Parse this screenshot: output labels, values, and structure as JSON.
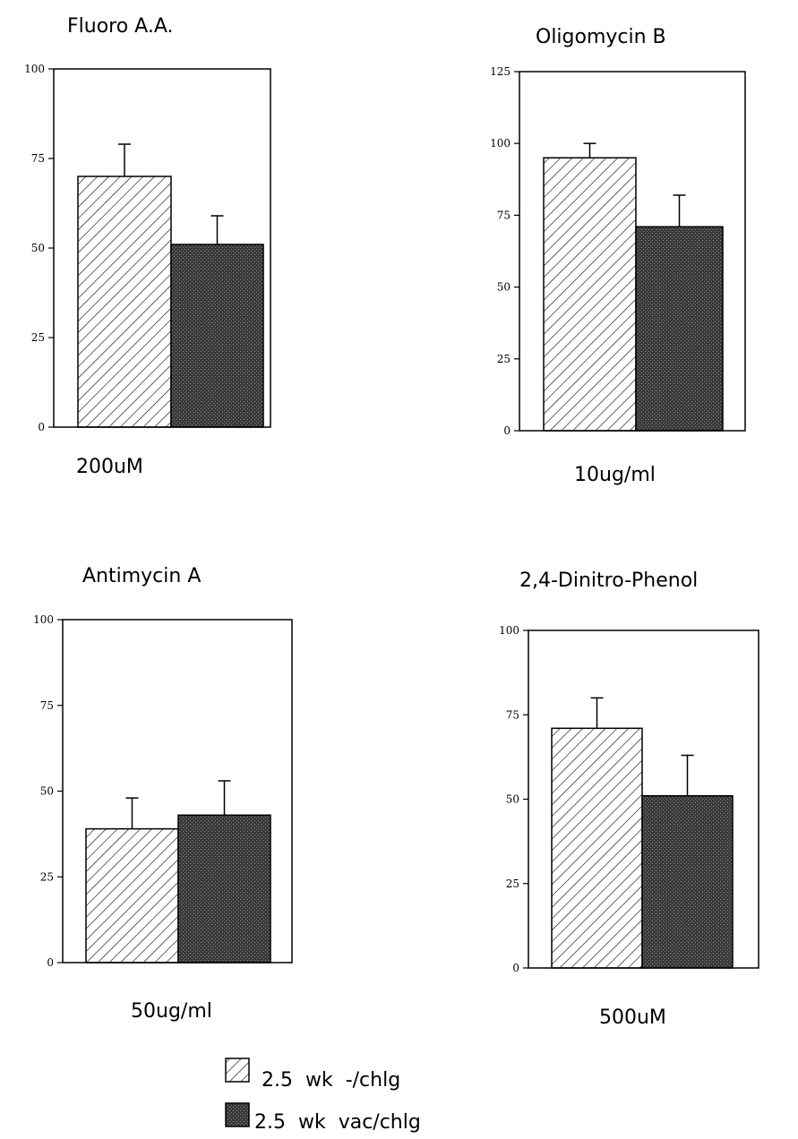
{
  "chart_data": [
    {
      "type": "bar",
      "title": "Fluoro  A.A.",
      "condition": "200uM",
      "ylim": [
        0,
        100
      ],
      "ticks": [
        0,
        25,
        50,
        75,
        100
      ],
      "grid": false,
      "series": [
        {
          "name": "2.5  wk  -/chlg",
          "values": [
            70
          ],
          "errors": [
            9
          ]
        },
        {
          "name": "2.5  wk  vac/chlg",
          "values": [
            51
          ],
          "errors": [
            8
          ]
        }
      ]
    },
    {
      "type": "bar",
      "title": "Oligomycin  B",
      "condition": "10ug/ml",
      "ylim": [
        0,
        125
      ],
      "ticks": [
        0,
        25,
        50,
        75,
        100,
        125
      ],
      "grid": false,
      "series": [
        {
          "name": "2.5  wk  -/chlg",
          "values": [
            95
          ],
          "errors": [
            5
          ]
        },
        {
          "name": "2.5  wk  vac/chlg",
          "values": [
            71
          ],
          "errors": [
            11
          ]
        }
      ]
    },
    {
      "type": "bar",
      "title": "Antimycin  A",
      "condition": "50ug/ml",
      "ylim": [
        0,
        100
      ],
      "ticks": [
        0,
        25,
        50,
        75,
        100
      ],
      "grid": false,
      "series": [
        {
          "name": "2.5  wk  -/chlg",
          "values": [
            39
          ],
          "errors": [
            9
          ]
        },
        {
          "name": "2.5  wk  vac/chlg",
          "values": [
            43
          ],
          "errors": [
            10
          ]
        }
      ]
    },
    {
      "type": "bar",
      "title": "2,4-Dinitro-Phenol",
      "condition": "500uM",
      "ylim": [
        0,
        100
      ],
      "ticks": [
        0,
        25,
        50,
        75,
        100
      ],
      "grid": false,
      "series": [
        {
          "name": "2.5  wk  -/chlg",
          "values": [
            71
          ],
          "errors": [
            9
          ]
        },
        {
          "name": "2.5  wk  vac/chlg",
          "values": [
            51
          ],
          "errors": [
            12
          ]
        }
      ]
    }
  ],
  "legend": {
    "position": "bottom-center",
    "items": [
      {
        "label": "2.5  wk  -/chlg",
        "pattern": "hatch"
      },
      {
        "label": "2.5  wk  vac/chlg",
        "pattern": "dark-stipple"
      }
    ]
  },
  "colors": {
    "hatch_fill": "#ffffff",
    "hatch_line": "#000000",
    "dark_fill": "#3a3a3a"
  }
}
